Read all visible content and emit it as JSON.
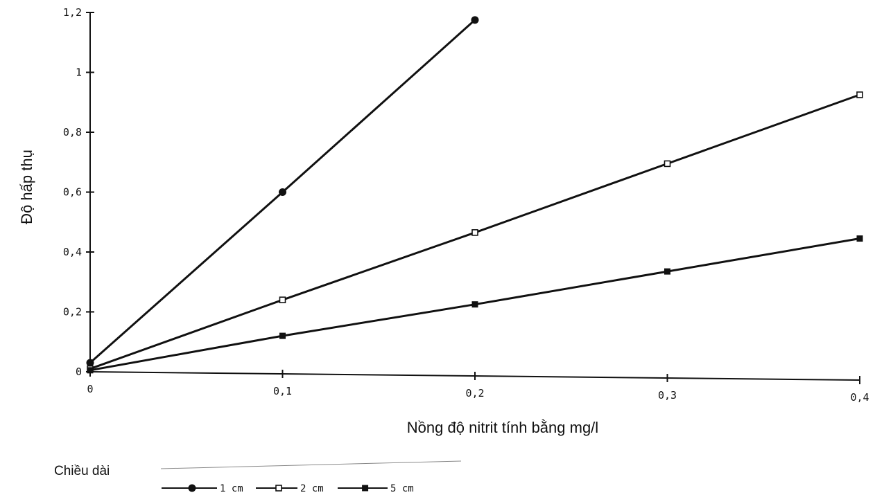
{
  "chart_data": {
    "type": "line",
    "xlabel": "Nồng độ nitrit tính bằng mg/l",
    "ylabel": "Độ hấp thụ",
    "x_ticks": [
      "0",
      "0,1",
      "0,2",
      "0,3",
      "0,4"
    ],
    "y_ticks": [
      "0",
      "0,2",
      "0,4",
      "0,6",
      "0,8",
      "1",
      "1,2"
    ],
    "xlim": [
      0,
      0.4
    ],
    "ylim": [
      0,
      1.2
    ],
    "grid": false,
    "legend": {
      "title": "Chiều dài",
      "placement": "bottom-left",
      "entries": [
        "1 cm",
        "2 cm",
        "5 cm"
      ]
    },
    "series": [
      {
        "name": "1 cm",
        "marker": "filled-circle",
        "x": [
          0,
          0.1,
          0.2
        ],
        "y": [
          0.03,
          0.6,
          1.175
        ]
      },
      {
        "name": "2 cm",
        "marker": "open-square",
        "x": [
          0,
          0.1,
          0.2,
          0.3,
          0.4
        ],
        "y": [
          0.01,
          0.24,
          0.465,
          0.695,
          0.925
        ]
      },
      {
        "name": "5 cm",
        "marker": "filled-square",
        "x": [
          0,
          0.1,
          0.2,
          0.3,
          0.4
        ],
        "y": [
          0.005,
          0.12,
          0.225,
          0.335,
          0.445
        ]
      }
    ],
    "colors": {
      "line": "#111111",
      "marker_fill_open": "#ffffff"
    }
  }
}
